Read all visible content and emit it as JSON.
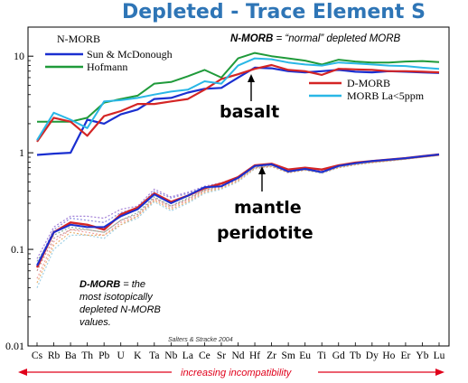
{
  "slide_title": "Depleted - Trace Element S",
  "chart_data": {
    "type": "line",
    "scale_y": "log",
    "ylim": [
      0.01,
      20
    ],
    "y_ticks": [
      "10",
      "1",
      "0.1",
      "0.01"
    ],
    "y_tick_values": [
      10,
      1,
      0.1,
      0.01
    ],
    "categories": [
      "Cs",
      "Rb",
      "Ba",
      "Th",
      "Pb",
      "U",
      "K",
      "Ta",
      "Nb",
      "La",
      "Ce",
      "Sr",
      "Nd",
      "Hf",
      "Zr",
      "Sm",
      "Eu",
      "Ti",
      "Gd",
      "Tb",
      "Dy",
      "Ho",
      "Er",
      "Yb",
      "Lu"
    ],
    "legend_header": "N-MORB",
    "series": [
      {
        "name": "Sun & McDonough",
        "color": "#1a2fd0",
        "width": 2.2,
        "dash": "",
        "values": [
          0.95,
          0.98,
          1.0,
          2.2,
          2.0,
          2.5,
          2.8,
          3.6,
          3.7,
          4.2,
          4.6,
          4.7,
          6.0,
          7.6,
          7.5,
          7.0,
          6.8,
          7.0,
          7.2,
          6.9,
          6.8,
          7.0,
          6.9,
          6.8,
          6.7
        ]
      },
      {
        "name": "Hofmann",
        "color": "#1f9a3a",
        "width": 2.0,
        "dash": "",
        "values": [
          2.1,
          2.1,
          2.1,
          2.3,
          3.3,
          3.6,
          3.9,
          5.2,
          5.4,
          6.2,
          7.2,
          6.0,
          9.5,
          10.8,
          10.0,
          9.5,
          9.0,
          8.2,
          9.2,
          8.8,
          8.6,
          8.6,
          8.8,
          8.9,
          8.7
        ]
      },
      {
        "name": "D-MORB",
        "color": "#d42525",
        "width": 2.2,
        "dash": "",
        "values": [
          1.3,
          2.3,
          2.1,
          1.5,
          2.4,
          2.7,
          3.2,
          3.2,
          3.4,
          3.6,
          4.5,
          5.8,
          6.5,
          7.4,
          8.1,
          7.2,
          7.0,
          6.4,
          7.4,
          7.3,
          7.2,
          7.0,
          7.0,
          6.9,
          6.8
        ]
      },
      {
        "name": "MORB  La<5ppm",
        "color": "#2ab7e6",
        "width": 2.0,
        "dash": "",
        "values": [
          1.35,
          2.6,
          2.2,
          1.8,
          3.4,
          3.5,
          3.7,
          4.0,
          4.3,
          4.5,
          5.5,
          5.2,
          8.0,
          9.5,
          9.3,
          8.6,
          8.2,
          8.0,
          8.6,
          8.4,
          8.2,
          8.0,
          7.9,
          7.6,
          7.4
        ]
      },
      {
        "name": "",
        "color": "#d42525",
        "width": 2.4,
        "dash": "",
        "values": [
          0.065,
          0.15,
          0.19,
          0.18,
          0.16,
          0.23,
          0.27,
          0.38,
          0.31,
          0.36,
          0.43,
          0.48,
          0.56,
          0.74,
          0.77,
          0.67,
          0.7,
          0.67,
          0.74,
          0.79,
          0.82,
          0.85,
          0.88,
          0.92,
          0.96
        ]
      },
      {
        "name": "",
        "color": "#1a2fd0",
        "width": 2.0,
        "dash": "",
        "values": [
          0.068,
          0.15,
          0.18,
          0.17,
          0.17,
          0.22,
          0.26,
          0.37,
          0.3,
          0.36,
          0.44,
          0.45,
          0.55,
          0.73,
          0.76,
          0.64,
          0.68,
          0.63,
          0.73,
          0.78,
          0.82,
          0.85,
          0.88,
          0.92,
          0.96
        ]
      },
      {
        "name": "",
        "color": "#a27fd6",
        "width": 1.2,
        "dash": "2,2",
        "values": [
          0.08,
          0.17,
          0.22,
          0.22,
          0.21,
          0.26,
          0.28,
          0.42,
          0.35,
          0.39,
          0.45,
          0.49,
          0.56,
          0.72,
          0.76,
          0.66,
          0.69,
          0.65,
          0.73,
          0.78,
          0.81,
          0.84,
          0.87,
          0.91,
          0.95
        ]
      },
      {
        "name": "",
        "color": "#8a8ae0",
        "width": 1.2,
        "dash": "2,2",
        "values": [
          0.07,
          0.16,
          0.21,
          0.2,
          0.19,
          0.24,
          0.27,
          0.4,
          0.34,
          0.38,
          0.44,
          0.48,
          0.56,
          0.72,
          0.75,
          0.65,
          0.68,
          0.64,
          0.73,
          0.77,
          0.81,
          0.84,
          0.87,
          0.91,
          0.95
        ]
      },
      {
        "name": "",
        "color": "#f0a0a0",
        "width": 1.2,
        "dash": "2,2",
        "values": [
          0.05,
          0.12,
          0.16,
          0.15,
          0.14,
          0.19,
          0.22,
          0.33,
          0.27,
          0.32,
          0.4,
          0.44,
          0.52,
          0.7,
          0.73,
          0.63,
          0.67,
          0.62,
          0.71,
          0.76,
          0.8,
          0.83,
          0.86,
          0.9,
          0.94
        ]
      },
      {
        "name": "",
        "color": "#9fd0e6",
        "width": 1.2,
        "dash": "2,2",
        "values": [
          0.04,
          0.1,
          0.14,
          0.14,
          0.13,
          0.18,
          0.21,
          0.31,
          0.25,
          0.3,
          0.38,
          0.42,
          0.5,
          0.68,
          0.72,
          0.62,
          0.66,
          0.61,
          0.7,
          0.75,
          0.79,
          0.82,
          0.86,
          0.9,
          0.94
        ]
      },
      {
        "name": "",
        "color": "#e8b070",
        "width": 1.2,
        "dash": "2,2",
        "values": [
          0.045,
          0.11,
          0.15,
          0.14,
          0.14,
          0.18,
          0.22,
          0.32,
          0.26,
          0.31,
          0.39,
          0.43,
          0.51,
          0.69,
          0.72,
          0.62,
          0.66,
          0.62,
          0.7,
          0.75,
          0.79,
          0.82,
          0.86,
          0.9,
          0.94
        ]
      },
      {
        "name": "",
        "color": "#8ab0a0",
        "width": 1.2,
        "dash": "2,2",
        "values": [
          0.075,
          0.14,
          0.17,
          0.16,
          0.15,
          0.2,
          0.24,
          0.35,
          0.28,
          0.34,
          0.41,
          0.46,
          0.54,
          0.71,
          0.74,
          0.64,
          0.67,
          0.63,
          0.72,
          0.77,
          0.8,
          0.83,
          0.86,
          0.9,
          0.94
        ]
      },
      {
        "name": "",
        "color": "#c09090",
        "width": 1.2,
        "dash": "2,2",
        "values": [
          0.06,
          0.13,
          0.16,
          0.16,
          0.15,
          0.2,
          0.23,
          0.34,
          0.28,
          0.33,
          0.41,
          0.45,
          0.53,
          0.7,
          0.73,
          0.63,
          0.67,
          0.62,
          0.71,
          0.76,
          0.8,
          0.83,
          0.86,
          0.9,
          0.95
        ]
      }
    ],
    "annotations": {
      "nmorb_def_bold": "N-MORB",
      "nmorb_def_rest": " = “normal” depleted MORB",
      "basalt": "basalt",
      "mantle": "mantle",
      "peridotite": "peridotite",
      "dmorb_line1_bold": "D-MORB",
      "dmorb_line1_rest": " = the",
      "dmorb_line2": "most isotopically",
      "dmorb_line3": "depleted N-MORB",
      "dmorb_line4": "values.",
      "source": "Salters & Stracke 2004",
      "xlabel": "increasing incompatibility"
    },
    "grid": false
  }
}
